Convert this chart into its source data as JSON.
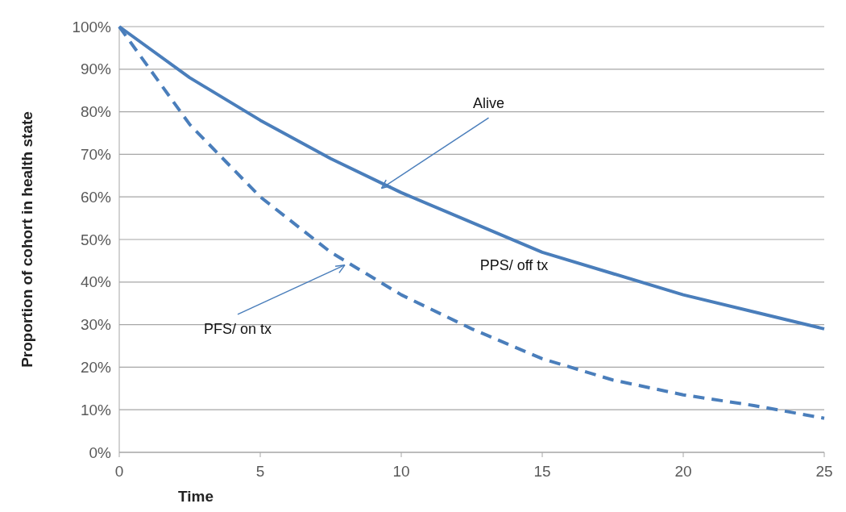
{
  "chart_data": {
    "type": "line",
    "xlabel": "Time",
    "ylabel": "Proportion of cohort in health state",
    "x": [
      0,
      2.5,
      5,
      7.5,
      10,
      12.5,
      15,
      17.5,
      20,
      22.5,
      25
    ],
    "series": [
      {
        "color": "#4a7ebb",
        "line_style": "solid",
        "values": [
          100,
          88,
          78,
          69,
          61,
          54,
          47,
          42,
          37,
          33,
          29
        ]
      },
      {
        "color": "#4a7ebb",
        "line_style": "dashed",
        "values": [
          100,
          77,
          60,
          47,
          37,
          29,
          22,
          17,
          13.5,
          11,
          8
        ]
      }
    ],
    "xlim": [
      0,
      25
    ],
    "xticks": [
      0,
      5,
      10,
      15,
      20,
      25
    ],
    "ylim": [
      0,
      100
    ],
    "yticks": [
      {
        "value": 0,
        "label": "0%"
      },
      {
        "value": 10,
        "label": "10%"
      },
      {
        "value": 20,
        "label": "20%"
      },
      {
        "value": 30,
        "label": "30%"
      },
      {
        "value": 40,
        "label": "40%"
      },
      {
        "value": 50,
        "label": "50%"
      },
      {
        "value": 60,
        "label": "60%"
      },
      {
        "value": 70,
        "label": "70%"
      },
      {
        "value": 80,
        "label": "80%"
      },
      {
        "value": 90,
        "label": "90%"
      },
      {
        "value": 100,
        "label": "100%"
      }
    ],
    "grid": "y",
    "marker": "none",
    "annotations": [
      {
        "text": "Alive",
        "x": 9.3,
        "y": 62
      },
      "PPS/ off tx",
      {
        "text": "PFS/ on tx",
        "x": 8,
        "y": 44
      }
    ]
  }
}
